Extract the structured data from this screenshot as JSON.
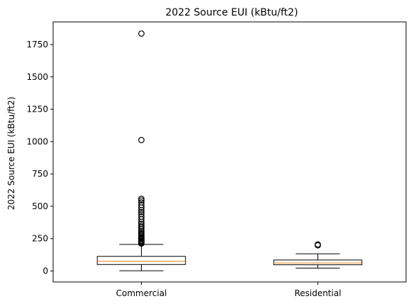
{
  "chart_data": {
    "type": "box",
    "title": "2022 Source EUI (kBtu/ft2)",
    "xlabel": "",
    "ylabel": "2022 Source EUI (kBtu/ft2)",
    "categories": [
      "Commercial",
      "Residential"
    ],
    "ylim": [
      -85,
      1925
    ],
    "yticks": [
      0,
      250,
      500,
      750,
      1000,
      1250,
      1500,
      1750
    ],
    "grid": false,
    "boxes": [
      {
        "category": "Commercial",
        "whisker_low": 2,
        "q1": 50,
        "median": 75,
        "q3": 113,
        "whisker_high": 205,
        "fliers": [
          212,
          218,
          225,
          232,
          240,
          248,
          255,
          262,
          270,
          280,
          290,
          300,
          312,
          325,
          338,
          350,
          365,
          380,
          400,
          420,
          440,
          455,
          470,
          490,
          510,
          530,
          545,
          558,
          1012,
          1835
        ]
      },
      {
        "category": "Residential",
        "whisker_low": 22,
        "q1": 48,
        "median": 62,
        "q3": 85,
        "whisker_high": 133,
        "fliers": [
          198,
          205
        ]
      }
    ]
  },
  "colors": {
    "box": "#000000",
    "median": "#ff7f0e",
    "flier": "#000000",
    "background": "#ffffff"
  }
}
